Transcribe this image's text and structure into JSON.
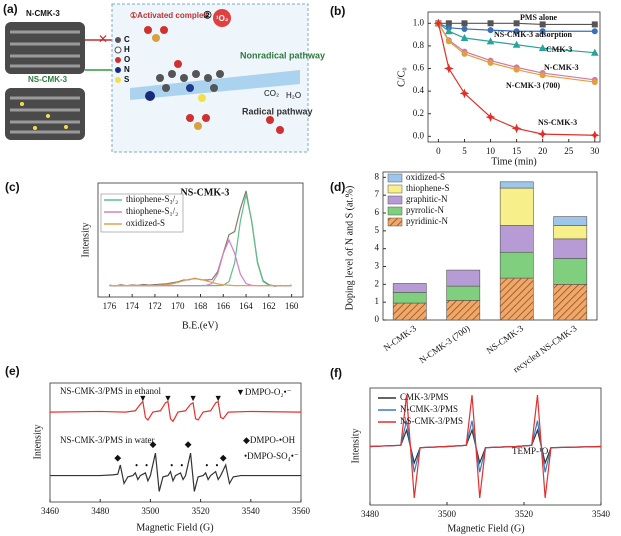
{
  "panel_labels": [
    "(a)",
    "(b)",
    "(c)",
    "(d)",
    "(e)",
    "(f)"
  ],
  "schematic": {
    "material_labels": [
      "N-CMK-3",
      "NS-CMK-3"
    ],
    "step1": "①Activated complex",
    "step2": "②",
    "singlet_oxygen": "¹O₂",
    "nonradical": "Nonradical pathway",
    "radical": "Radical pathway",
    "products": [
      "CO₂",
      "H₂O"
    ],
    "atom_legend": [
      "C",
      "H",
      "O",
      "N",
      "S"
    ]
  },
  "chart_data": [
    {
      "type": "line",
      "x_label": "Time (min)",
      "y_label": "C/C₀",
      "legend": "inline",
      "x": [
        0,
        2,
        5,
        10,
        15,
        20,
        30
      ],
      "xlim": [
        -2,
        31
      ],
      "xticks": [
        0,
        5,
        10,
        15,
        20,
        25,
        30
      ],
      "ylim": [
        -0.05,
        1.1
      ],
      "yticks": [
        {
          "value": 0,
          "label": "0.0"
        },
        {
          "value": 0.2,
          "label": "0.2"
        },
        {
          "value": 0.4,
          "label": "0.4"
        },
        {
          "value": 0.6,
          "label": "0.6"
        },
        {
          "value": 0.8,
          "label": "0.8"
        },
        {
          "value": 1,
          "label": "1.0"
        }
      ],
      "series": [
        {
          "name": "PMS alone",
          "color": "#555555",
          "marker": "square",
          "values": [
            1.0,
            1.0,
            1.0,
            1.0,
            1.0,
            0.99,
            0.99
          ]
        },
        {
          "name": "NS-CMK-3 adsorption",
          "color": "#3b6fb6",
          "marker": "circle",
          "values": [
            1.0,
            0.96,
            0.95,
            0.94,
            0.93,
            0.93,
            0.93
          ]
        },
        {
          "name": "CMK-3",
          "color": "#2aa39a",
          "marker": "triangle",
          "values": [
            1.0,
            0.93,
            0.87,
            0.84,
            0.81,
            0.78,
            0.74
          ]
        },
        {
          "name": "N-CMK-3",
          "color": "#d07aa0",
          "marker": "circle",
          "values": [
            1.0,
            0.85,
            0.75,
            0.67,
            0.61,
            0.56,
            0.5
          ]
        },
        {
          "name": "N-CMK-3 (700)",
          "color": "#e0a040",
          "marker": "circle",
          "values": [
            1.0,
            0.84,
            0.73,
            0.65,
            0.59,
            0.54,
            0.48
          ]
        },
        {
          "name": "NS-CMK-3",
          "color": "#e0302a",
          "marker": "star",
          "values": [
            1.0,
            0.6,
            0.38,
            0.17,
            0.07,
            0.02,
            0.01
          ]
        }
      ]
    },
    {
      "type": "line",
      "title": "NS-CMK-3",
      "x_label": "B.E.(eV)",
      "y_label": "Intensity",
      "legend": "top-left",
      "x": [
        176,
        175.5,
        175,
        174.5,
        174,
        173.5,
        173,
        172.5,
        172,
        171.5,
        171,
        170.5,
        170,
        169.5,
        169,
        168.5,
        168,
        167.5,
        167,
        166.5,
        166,
        165.5,
        165,
        164.5,
        164,
        163.5,
        163,
        162.5,
        162,
        161.5,
        161,
        160.5,
        160
      ],
      "xlim": [
        177,
        159
      ],
      "xticks": [
        176,
        174,
        172,
        170,
        168,
        166,
        164,
        162,
        160
      ],
      "ylim": [
        0,
        100
      ],
      "series": [
        {
          "color": "#8b7a6a",
          "values": [
            10.5,
            9.6,
            10.8,
            9.9,
            10.6,
            10.2,
            11,
            10.4,
            10.9,
            11.2,
            11.5,
            12.4,
            13.3,
            14.8,
            15.1,
            16.5,
            15.2,
            14.9,
            15.3,
            22,
            38.5,
            54.6,
            57.4,
            77.5,
            93,
            65.9,
            30.8,
            14.2,
            10.9,
            9.4,
            10.1,
            9.7,
            10.3
          ]
        },
        {
          "name": "thiophene-S₃/₂",
          "color": "#5cc08a",
          "values": [
            10,
            10,
            10,
            10,
            10,
            10,
            10,
            10,
            10,
            10,
            10,
            10,
            10,
            10,
            10,
            10,
            10,
            10,
            10,
            10,
            10.3,
            13.5,
            29.9,
            66.6,
            90,
            66.6,
            29.9,
            13.5,
            10.3,
            10,
            10,
            10,
            10
          ]
        },
        {
          "name": "thiophene-S₁/₂",
          "color": "#d080c8",
          "values": [
            10,
            10,
            10,
            10,
            10,
            10,
            10,
            10,
            10,
            10,
            10,
            10,
            10,
            10,
            10,
            10,
            10,
            10.2,
            11.8,
            20,
            38.3,
            50,
            38.3,
            20,
            11.8,
            10.2,
            10,
            10,
            10,
            10,
            10,
            10,
            10
          ]
        },
        {
          "name": "oxidized-S",
          "color": "#e0a050",
          "values": [
            10,
            10,
            10,
            10,
            10,
            10,
            10,
            10,
            10,
            10.3,
            10.7,
            11.5,
            12.8,
            14.2,
            15.5,
            16,
            15.5,
            14.2,
            12.8,
            11.5,
            10.7,
            10.3,
            10,
            10,
            10,
            10,
            10,
            10,
            10,
            10,
            10,
            10,
            10
          ]
        }
      ]
    },
    {
      "type": "bar",
      "stacked": true,
      "y_label": "Doping level of N and S (at.%)",
      "legend": "top-left",
      "categories": [
        "N-CMK-3",
        "N-CMK-3 (700)",
        "NS-CMK-3",
        "recycled NS-CMK-3"
      ],
      "ylim": [
        0,
        8.3
      ],
      "yticks": [
        0,
        1,
        2,
        3,
        4,
        5,
        6,
        7,
        8
      ],
      "series": [
        {
          "name": "pyridinic-N",
          "color": "#f0a868",
          "hatch": true,
          "values": [
            0.95,
            1.1,
            2.35,
            2.0
          ]
        },
        {
          "name": "pyrrolic-N",
          "color": "#7fcf7f",
          "values": [
            0.6,
            0.8,
            1.45,
            1.45
          ]
        },
        {
          "name": "graphitic-N",
          "color": "#b79bd4",
          "values": [
            0.5,
            0.9,
            1.5,
            1.1
          ]
        },
        {
          "name": "thiophene-S",
          "color": "#f7ef8a",
          "values": [
            0,
            0,
            2.1,
            0.75
          ]
        },
        {
          "name": "oxidized-S",
          "color": "#9ec6ea",
          "values": [
            0,
            0,
            0.35,
            0.5
          ]
        }
      ]
    },
    {
      "type": "line",
      "x_label": "Magnetic Field (G)",
      "y_label": "Intensity",
      "xlim": [
        3460,
        3560
      ],
      "xticks": [
        3460,
        3480,
        3500,
        3520,
        3540,
        3560
      ],
      "ylim": [
        10,
        100
      ],
      "annotations": [
        "NS-CMK-3/PMS in ethanol",
        "▼DMPO-O₂•⁻",
        "NS-CMK-3/PMS in water",
        "◆DMPO-•OH",
        "•DMPO-SO₄•⁻"
      ],
      "markers": [
        {
          "symbol": "▼",
          "x": [
            3497,
            3507,
            3517,
            3527
          ],
          "y": [
            88,
            88,
            88,
            88
          ]
        },
        {
          "symbol": "◆",
          "x": [
            3487,
            3501,
            3515,
            3529
          ],
          "y": [
            43,
            53,
            53,
            43
          ]
        },
        {
          "symbol": "•",
          "x": [
            3494.5,
            3498.5,
            3508.5,
            3512.5,
            3522.5,
            3526.5
          ],
          "y": [
            37,
            37,
            37,
            37,
            37,
            37
          ]
        }
      ],
      "series": [
        {
          "color": "#e8312f",
          "x": [
            3460,
            3480,
            3490,
            3494,
            3496,
            3497,
            3498,
            3499,
            3501,
            3504,
            3506,
            3507,
            3508,
            3509,
            3511,
            3514,
            3516,
            3517,
            3518,
            3519,
            3521,
            3524,
            3526,
            3527,
            3528,
            3529,
            3531,
            3540,
            3560
          ],
          "values": [
            78,
            78.5,
            78,
            79,
            84,
            86,
            74,
            72,
            78,
            79,
            85,
            86,
            73,
            71,
            78,
            79,
            84,
            85,
            73,
            72,
            78,
            79,
            85,
            86,
            74,
            73,
            78,
            78.5,
            78
          ]
        },
        {
          "color": "#333333",
          "x": [
            3460,
            3480,
            3485,
            3487,
            3488,
            3489.5,
            3491,
            3493,
            3494,
            3495,
            3496,
            3498,
            3499,
            3500,
            3502,
            3503.5,
            3505,
            3507,
            3508,
            3509,
            3510,
            3512,
            3513,
            3514,
            3516,
            3517.5,
            3519,
            3521,
            3522,
            3523,
            3524,
            3526,
            3527,
            3528,
            3530,
            3531.5,
            3533,
            3536,
            3560
          ],
          "values": [
            30,
            30,
            30.5,
            31,
            38,
            24,
            29,
            30,
            32,
            27,
            30,
            32,
            26,
            30,
            47,
            18,
            29,
            30,
            33,
            26,
            30,
            32,
            27,
            30,
            47,
            18,
            29,
            30,
            32,
            27,
            30,
            33,
            27,
            30,
            38,
            24,
            29,
            30,
            30
          ]
        }
      ]
    },
    {
      "type": "line",
      "x_label": "Magnetic Field (G)",
      "y_label": "Intensity",
      "legend": "top-left",
      "x": [
        3480,
        3488,
        3489.5,
        3490.5,
        3491.5,
        3493,
        3500,
        3505,
        3506.5,
        3507.5,
        3508.5,
        3510,
        3518,
        3522,
        3523.5,
        3524.5,
        3525.5,
        3527,
        3540
      ],
      "xlim": [
        3480,
        3540
      ],
      "xticks": [
        3480,
        3500,
        3520,
        3540
      ],
      "ylim": [
        0,
        100
      ],
      "annotations": [
        "TEMP-¹O₂"
      ],
      "series": [
        {
          "name": "CMK-3/PMS",
          "color": "#333333",
          "values": [
            50,
            51,
            64,
            50,
            36,
            49,
            50,
            51,
            64,
            50,
            36,
            49,
            50,
            51,
            64,
            50,
            36,
            49,
            50
          ]
        },
        {
          "name": "N-CMK-3/PMS",
          "color": "#3a7abf",
          "values": [
            50,
            51,
            72,
            50,
            28,
            49,
            50,
            51,
            72,
            50,
            28,
            49,
            50,
            51,
            72,
            50,
            28,
            49,
            50
          ]
        },
        {
          "name": "NS-CMK-3/PMS",
          "color": "#e03030",
          "values": [
            50,
            51,
            94,
            50,
            6,
            49,
            50,
            51,
            94,
            50,
            6,
            49,
            50,
            51,
            94,
            50,
            6,
            49,
            50
          ]
        }
      ]
    }
  ]
}
